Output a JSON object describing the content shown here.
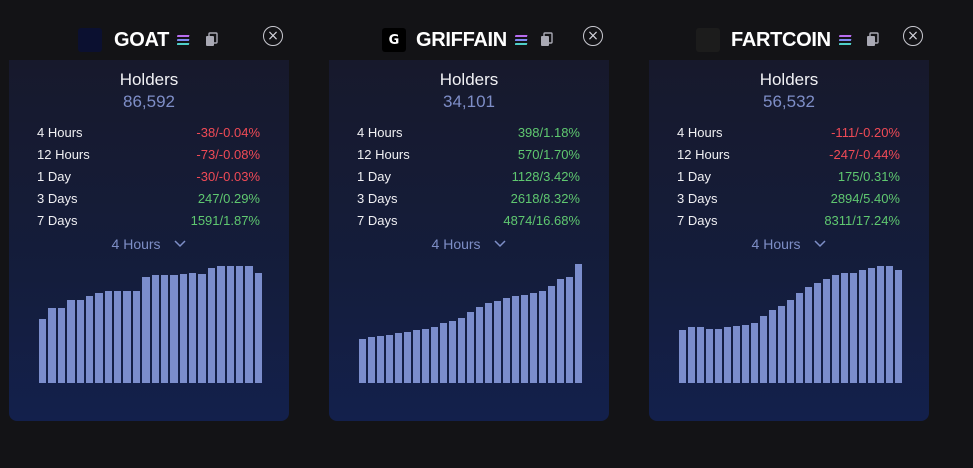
{
  "cards": [
    {
      "token": "GOAT",
      "logo_text": "",
      "logo_color": "#0b1030",
      "holders_label": "Holders",
      "holders_value": "86,592",
      "stats": [
        {
          "label": "4 Hours",
          "value": "-38/-0.04%",
          "trend": "neg"
        },
        {
          "label": "12 Hours",
          "value": "-73/-0.08%",
          "trend": "neg"
        },
        {
          "label": "1 Day",
          "value": "-30/-0.03%",
          "trend": "neg"
        },
        {
          "label": "3 Days",
          "value": "247/0.29%",
          "trend": "pos"
        },
        {
          "label": "7 Days",
          "value": "1591/1.87%",
          "trend": "pos"
        }
      ],
      "period": "4 Hours",
      "bar_levels": [
        0.53,
        0.62,
        0.62,
        0.69,
        0.69,
        0.72,
        0.74,
        0.76,
        0.76,
        0.76,
        0.76,
        0.88,
        0.89,
        0.89,
        0.89,
        0.9,
        0.91,
        0.9,
        0.95,
        0.97,
        0.97,
        0.97,
        0.97,
        0.91
      ]
    },
    {
      "token": "GRIFFAIN",
      "logo_text": "G",
      "logo_color": "#000000",
      "holders_label": "Holders",
      "holders_value": "34,101",
      "stats": [
        {
          "label": "4 Hours",
          "value": "398/1.18%",
          "trend": "pos"
        },
        {
          "label": "12 Hours",
          "value": "570/1.70%",
          "trend": "pos"
        },
        {
          "label": "1 Day",
          "value": "1128/3.42%",
          "trend": "pos"
        },
        {
          "label": "3 Days",
          "value": "2618/8.32%",
          "trend": "pos"
        },
        {
          "label": "7 Days",
          "value": "4874/16.68%",
          "trend": "pos"
        }
      ],
      "period": "4 Hours",
      "bar_levels": [
        0.36,
        0.38,
        0.39,
        0.4,
        0.41,
        0.42,
        0.44,
        0.45,
        0.46,
        0.5,
        0.51,
        0.54,
        0.59,
        0.63,
        0.66,
        0.68,
        0.7,
        0.72,
        0.73,
        0.74,
        0.76,
        0.8,
        0.86,
        0.88,
        0.98
      ]
    },
    {
      "token": "FARTCOIN",
      "logo_text": "",
      "logo_color": "#1c1c1c",
      "holders_label": "Holders",
      "holders_value": "56,532",
      "stats": [
        {
          "label": "4 Hours",
          "value": "-111/-0.20%",
          "trend": "neg"
        },
        {
          "label": "12 Hours",
          "value": "-247/-0.44%",
          "trend": "neg"
        },
        {
          "label": "1 Day",
          "value": "175/0.31%",
          "trend": "pos"
        },
        {
          "label": "3 Days",
          "value": "2894/5.40%",
          "trend": "pos"
        },
        {
          "label": "7 Days",
          "value": "8311/17.24%",
          "trend": "pos"
        }
      ],
      "period": "4 Hours",
      "bar_levels": [
        0.44,
        0.46,
        0.46,
        0.45,
        0.45,
        0.46,
        0.47,
        0.48,
        0.5,
        0.55,
        0.6,
        0.64,
        0.69,
        0.74,
        0.79,
        0.83,
        0.86,
        0.89,
        0.91,
        0.91,
        0.93,
        0.95,
        0.97,
        0.97,
        0.93
      ]
    }
  ]
}
